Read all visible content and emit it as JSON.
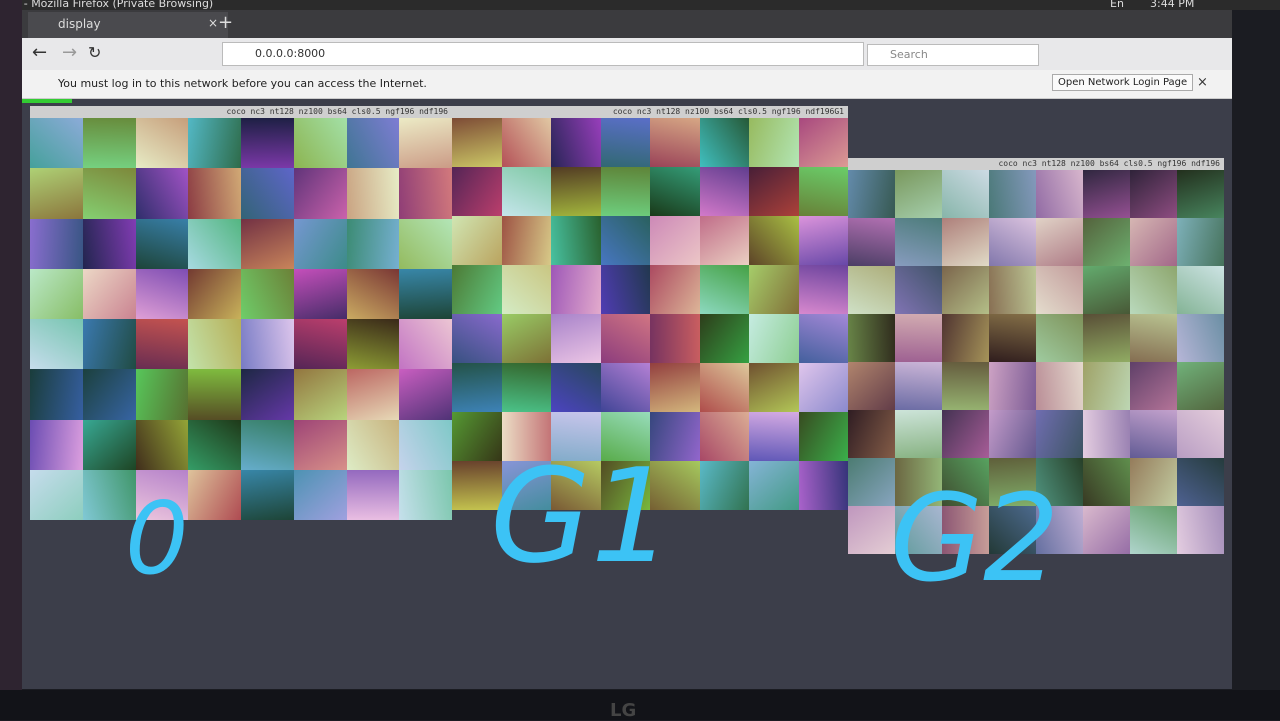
{
  "window": {
    "title": "day - Mozilla Firefox (Private Browsing)",
    "clock": "3:44 PM",
    "lang": "En"
  },
  "browser": {
    "tab": "display",
    "url": "0.0.0.0:8000",
    "search": "Search",
    "notice": "You must log in to this network before you can access the Internet.",
    "notice_button": "Open Network Login Page"
  },
  "panels": [
    {
      "title": "coco nc3 nt128 nz100 bs64 cls0.5 ngf196 ndf196",
      "annotation": "0"
    },
    {
      "title": "coco nc3 nt128 nz100 bs64 cls0.5 ngf196 ndf196G1",
      "annotation": "G1"
    },
    {
      "title": "coco nc3 nt128 nz100 bs64 cls0.5 ngf196 ndf196",
      "annotation": "G2"
    }
  ],
  "monitor": {
    "brand": "LG"
  }
}
